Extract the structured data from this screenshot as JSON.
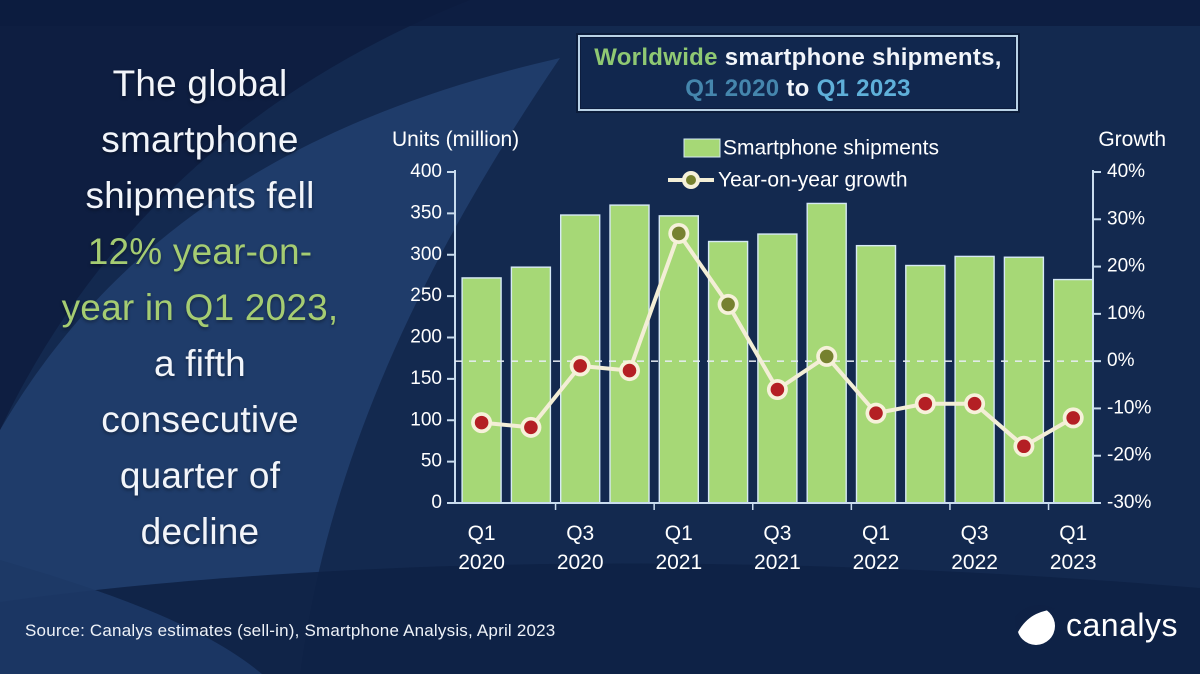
{
  "headline": {
    "lines": [
      {
        "t": "The global",
        "c": "white"
      },
      {
        "t": "smartphone",
        "c": "white"
      },
      {
        "t": "shipments fell",
        "c": "white"
      },
      {
        "t": "12% year-on-",
        "c": "green"
      },
      {
        "t": "year in Q1 2023,",
        "c": "green"
      },
      {
        "t": "a fifth",
        "c": "white"
      },
      {
        "t": "consecutive",
        "c": "white"
      },
      {
        "t": "quarter of",
        "c": "white"
      },
      {
        "t": "decline",
        "c": "white"
      }
    ]
  },
  "title_box": {
    "line1": [
      {
        "t": "Worldwide",
        "c": "green"
      },
      {
        "t": " smartphone shipments,",
        "c": "white"
      }
    ],
    "line2": [
      {
        "t": "Q1 2020",
        "c": "teal"
      },
      {
        "t": " to ",
        "c": "white"
      },
      {
        "t": "Q1 2023",
        "c": "lightblue"
      }
    ]
  },
  "chart_data": {
    "type": "bar",
    "categories": [
      "Q1 2020",
      "Q2 2020",
      "Q3 2020",
      "Q4 2020",
      "Q1 2021",
      "Q2 2021",
      "Q3 2021",
      "Q4 2021",
      "Q1 2022",
      "Q2 2022",
      "Q3 2022",
      "Q4 2022",
      "Q1 2023"
    ],
    "x_tick_labels_shown": [
      "Q1 2020",
      "Q3 2020",
      "Q1 2021",
      "Q3 2021",
      "Q1 2022",
      "Q3 2022",
      "Q1 2023"
    ],
    "series": [
      {
        "name": "Smartphone shipments",
        "type": "bar",
        "unit": "million units",
        "values": [
          272,
          285,
          348,
          360,
          347,
          316,
          325,
          362,
          311,
          287,
          298,
          297,
          270
        ]
      },
      {
        "name": "Year-on-year growth",
        "type": "line",
        "unit": "percent",
        "values": [
          -13,
          -14,
          -1,
          -2,
          27,
          12,
          -6,
          1,
          -11,
          -9,
          -9,
          -18,
          -12
        ]
      }
    ],
    "left_axis": {
      "title": "Units (million)",
      "min": 0,
      "max": 400,
      "step": 50,
      "tick_labels": [
        "400",
        "350",
        "300",
        "250",
        "200",
        "150",
        "100",
        "50",
        "0"
      ]
    },
    "right_axis": {
      "title": "Growth",
      "min": -30,
      "max": 40,
      "step": 10,
      "tick_labels": [
        "40%",
        "30%",
        "20%",
        "10%",
        "0%",
        "-10%",
        "-20%",
        "-30%"
      ]
    },
    "zero_growth_dashed_line": true,
    "legend_position": "top",
    "grid": "off"
  },
  "source": "Source: Canalys estimates (sell-in), Smartphone Analysis, April 2023",
  "logo": {
    "text": "canalys"
  },
  "colors": {
    "background": "#13294f",
    "headline_green": "#a5cc72",
    "title_green": "#8fc873",
    "title_teal": "#4586ad",
    "title_lightblue": "#5fb0d9",
    "bar_fill": "#a6d876",
    "bar_stroke": "#d6e9f5",
    "growth_line": "#f3eed6",
    "marker_ring": "#f6f1da",
    "marker_negative": "#b41f24",
    "marker_positive": "#76812f",
    "axis": "#c9dcee",
    "axis_text": "#ffffff",
    "dashed_zero": "#e8eef5"
  }
}
